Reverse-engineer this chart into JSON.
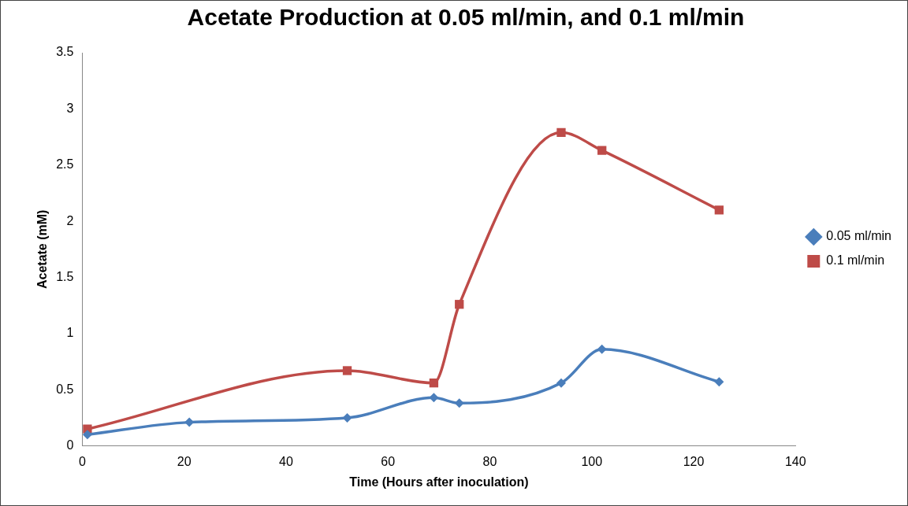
{
  "chart_data": {
    "type": "line",
    "title": "Acetate Production at 0.05 ml/min, and 0.1 ml/min",
    "xlabel": "Time (Hours after inoculation)",
    "ylabel": "Acetate (mM)",
    "x": [
      1,
      21,
      52,
      69,
      74,
      94,
      102,
      125
    ],
    "series": [
      {
        "name": "0.05 ml/min",
        "color": "#4a7ebb",
        "marker": "diamond",
        "values": [
          0.1,
          0.21,
          0.25,
          0.43,
          0.38,
          0.56,
          0.86,
          0.57
        ]
      },
      {
        "name": "0.1 ml/min",
        "color": "#be4b48",
        "marker": "square",
        "x": [
          1,
          52,
          69,
          74,
          94,
          102,
          125
        ],
        "values": [
          0.15,
          0.67,
          0.56,
          1.26,
          2.79,
          2.63,
          2.1
        ]
      }
    ],
    "xlim": [
      0,
      140
    ],
    "xticks": [
      0,
      20,
      40,
      60,
      80,
      100,
      120,
      140
    ],
    "ylim": [
      0,
      3.5
    ],
    "yticks": [
      0,
      0.5,
      1,
      1.5,
      2,
      2.5,
      3,
      3.5
    ],
    "grid": false,
    "legend": "right",
    "line_style": "solid"
  }
}
